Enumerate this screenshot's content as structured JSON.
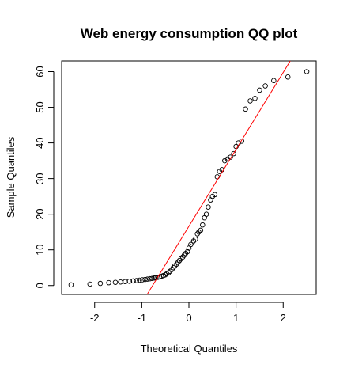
{
  "chart_data": {
    "type": "scatter",
    "title": "Web energy consumption QQ plot",
    "xlabel": "Theoretical Quantiles",
    "ylabel": "Sample Quantiles",
    "xlim": [
      -2.7,
      2.7
    ],
    "ylim": [
      -2.5,
      63
    ],
    "x_ticks": [
      -2,
      -1,
      0,
      1,
      2
    ],
    "y_ticks": [
      0,
      10,
      20,
      30,
      40,
      50,
      60
    ],
    "grid": false,
    "legend": "none",
    "point_color": "#000000",
    "line_color": "#ff0000",
    "reference_line": {
      "x1": -0.84,
      "y1": -1.5,
      "x2": 2.15,
      "y2": 63
    },
    "series": [
      {
        "points": [
          [
            -2.5,
            0.2
          ],
          [
            -2.1,
            0.4
          ],
          [
            -1.88,
            0.6
          ],
          [
            -1.7,
            0.8
          ],
          [
            -1.56,
            0.9
          ],
          [
            -1.45,
            1.0
          ],
          [
            -1.35,
            1.1
          ],
          [
            -1.26,
            1.2
          ],
          [
            -1.18,
            1.3
          ],
          [
            -1.11,
            1.4
          ],
          [
            -1.05,
            1.5
          ],
          [
            -0.99,
            1.6
          ],
          [
            -0.93,
            1.7
          ],
          [
            -0.88,
            1.8
          ],
          [
            -0.83,
            1.9
          ],
          [
            -0.78,
            2.0
          ],
          [
            -0.74,
            2.1
          ],
          [
            -0.7,
            2.2
          ],
          [
            -0.66,
            2.3
          ],
          [
            -0.62,
            2.4
          ],
          [
            -0.58,
            2.6
          ],
          [
            -0.54,
            2.8
          ],
          [
            -0.5,
            3.0
          ],
          [
            -0.47,
            3.3
          ],
          [
            -0.43,
            3.6
          ],
          [
            -0.4,
            4.0
          ],
          [
            -0.36,
            4.5
          ],
          [
            -0.33,
            5.0
          ],
          [
            -0.3,
            5.5
          ],
          [
            -0.26,
            6.0
          ],
          [
            -0.23,
            6.5
          ],
          [
            -0.2,
            7.0
          ],
          [
            -0.17,
            7.5
          ],
          [
            -0.13,
            8.0
          ],
          [
            -0.1,
            8.5
          ],
          [
            -0.07,
            9.0
          ],
          [
            -0.03,
            9.5
          ],
          [
            0.0,
            10.5
          ],
          [
            0.04,
            11.5
          ],
          [
            0.07,
            12.0
          ],
          [
            0.1,
            12.5
          ],
          [
            0.14,
            13.0
          ],
          [
            0.18,
            14.5
          ],
          [
            0.21,
            15.0
          ],
          [
            0.25,
            15.5
          ],
          [
            0.29,
            17.0
          ],
          [
            0.33,
            19.0
          ],
          [
            0.37,
            20.0
          ],
          [
            0.41,
            22.0
          ],
          [
            0.46,
            24.0
          ],
          [
            0.5,
            25.0
          ],
          [
            0.55,
            25.5
          ],
          [
            0.6,
            30.5
          ],
          [
            0.65,
            32.0
          ],
          [
            0.7,
            32.5
          ],
          [
            0.76,
            35.0
          ],
          [
            0.82,
            35.5
          ],
          [
            0.88,
            36.0
          ],
          [
            0.95,
            37.0
          ],
          [
            1.0,
            39.0
          ],
          [
            1.05,
            40.0
          ],
          [
            1.12,
            40.5
          ],
          [
            1.2,
            49.5
          ],
          [
            1.3,
            51.8
          ],
          [
            1.4,
            52.5
          ],
          [
            1.5,
            54.8
          ],
          [
            1.62,
            56.0
          ],
          [
            1.8,
            57.5
          ],
          [
            2.1,
            58.5
          ],
          [
            2.5,
            60.0
          ]
        ]
      }
    ]
  }
}
